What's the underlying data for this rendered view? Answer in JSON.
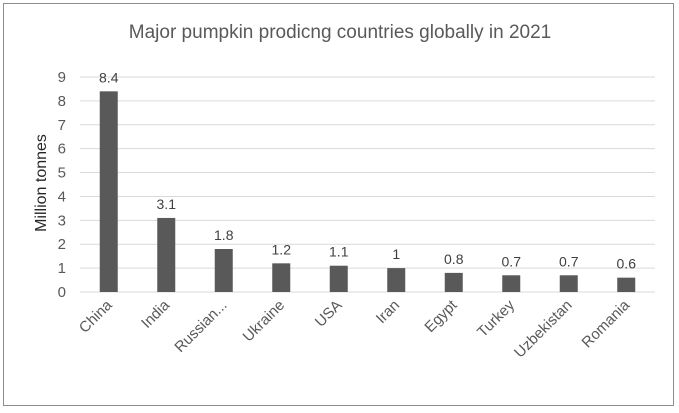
{
  "chart_data": {
    "type": "bar",
    "title": "Major pumpkin prodicng countries globally in 2021",
    "xlabel": "",
    "ylabel": "Million tonnes",
    "categories": [
      "China",
      "India",
      "Russian...",
      "Ukraine",
      "USA",
      "Iran",
      "Egypt",
      "Turkey",
      "Uzbekistan",
      "Romania"
    ],
    "values": [
      8.4,
      3.1,
      1.8,
      1.2,
      1.1,
      1,
      0.8,
      0.7,
      0.7,
      0.6
    ],
    "data_labels": [
      "8.4",
      "3.1",
      "1.8",
      "1.2",
      "1.1",
      "1",
      "0.8",
      "0.7",
      "0.7",
      "0.6"
    ],
    "yticks": [
      0,
      1,
      2,
      3,
      4,
      5,
      6,
      7,
      8,
      9
    ],
    "ylim": [
      0,
      9
    ],
    "grid": true,
    "legend": "none",
    "bar_color": "#595959"
  }
}
